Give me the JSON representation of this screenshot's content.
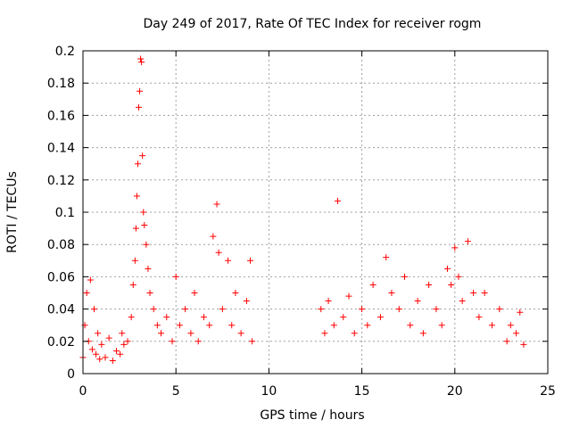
{
  "chart_data": {
    "type": "scatter",
    "title": "Day 249 of 2017, Rate Of TEC Index for receiver rogm",
    "xlabel": "GPS time / hours",
    "ylabel": "ROTI / TECUs",
    "xlim": [
      0,
      25
    ],
    "ylim": [
      0,
      0.2
    ],
    "xticks": [
      0,
      5,
      10,
      15,
      20,
      25
    ],
    "yticks": [
      0,
      0.02,
      0.04,
      0.06,
      0.08,
      0.1,
      0.12,
      0.14,
      0.16,
      0.18,
      0.2
    ],
    "xtick_labels": [
      "0",
      "5",
      "10",
      "15",
      "20",
      "25"
    ],
    "ytick_labels": [
      "0",
      "0.02",
      "0.04",
      "0.06",
      "0.08",
      "0.1",
      "0.12",
      "0.14",
      "0.16",
      "0.18",
      "0.2"
    ],
    "grid": true,
    "marker": "+",
    "color": "#ff0000",
    "series": [
      {
        "name": "ROTI",
        "points": [
          [
            0.0,
            0.01
          ],
          [
            0.1,
            0.03
          ],
          [
            0.2,
            0.05
          ],
          [
            0.3,
            0.02
          ],
          [
            0.4,
            0.058
          ],
          [
            0.5,
            0.015
          ],
          [
            0.6,
            0.04
          ],
          [
            0.7,
            0.012
          ],
          [
            0.8,
            0.025
          ],
          [
            0.9,
            0.009
          ],
          [
            1.0,
            0.018
          ],
          [
            1.2,
            0.01
          ],
          [
            1.4,
            0.022
          ],
          [
            1.6,
            0.008
          ],
          [
            1.8,
            0.014
          ],
          [
            2.0,
            0.012
          ],
          [
            2.1,
            0.025
          ],
          [
            2.2,
            0.018
          ],
          [
            2.4,
            0.02
          ],
          [
            2.6,
            0.035
          ],
          [
            2.7,
            0.055
          ],
          [
            2.8,
            0.07
          ],
          [
            2.85,
            0.09
          ],
          [
            2.9,
            0.11
          ],
          [
            2.95,
            0.13
          ],
          [
            3.0,
            0.165
          ],
          [
            3.05,
            0.175
          ],
          [
            3.1,
            0.195
          ],
          [
            3.15,
            0.193
          ],
          [
            3.2,
            0.135
          ],
          [
            3.25,
            0.1
          ],
          [
            3.3,
            0.092
          ],
          [
            3.4,
            0.08
          ],
          [
            3.5,
            0.065
          ],
          [
            3.6,
            0.05
          ],
          [
            3.8,
            0.04
          ],
          [
            4.0,
            0.03
          ],
          [
            4.2,
            0.025
          ],
          [
            4.5,
            0.035
          ],
          [
            4.8,
            0.02
          ],
          [
            5.0,
            0.06
          ],
          [
            5.2,
            0.03
          ],
          [
            5.5,
            0.04
          ],
          [
            5.8,
            0.025
          ],
          [
            6.0,
            0.05
          ],
          [
            6.2,
            0.02
          ],
          [
            6.5,
            0.035
          ],
          [
            6.8,
            0.03
          ],
          [
            7.0,
            0.085
          ],
          [
            7.2,
            0.105
          ],
          [
            7.3,
            0.075
          ],
          [
            7.5,
            0.04
          ],
          [
            7.8,
            0.07
          ],
          [
            8.0,
            0.03
          ],
          [
            8.2,
            0.05
          ],
          [
            8.5,
            0.025
          ],
          [
            8.8,
            0.045
          ],
          [
            9.0,
            0.07
          ],
          [
            9.1,
            0.02
          ],
          [
            12.8,
            0.04
          ],
          [
            13.0,
            0.025
          ],
          [
            13.2,
            0.045
          ],
          [
            13.5,
            0.03
          ],
          [
            13.7,
            0.107
          ],
          [
            14.0,
            0.035
          ],
          [
            14.3,
            0.048
          ],
          [
            14.6,
            0.025
          ],
          [
            15.0,
            0.04
          ],
          [
            15.3,
            0.03
          ],
          [
            15.6,
            0.055
          ],
          [
            16.0,
            0.035
          ],
          [
            16.3,
            0.072
          ],
          [
            16.6,
            0.05
          ],
          [
            17.0,
            0.04
          ],
          [
            17.3,
            0.06
          ],
          [
            17.6,
            0.03
          ],
          [
            18.0,
            0.045
          ],
          [
            18.3,
            0.025
          ],
          [
            18.6,
            0.055
          ],
          [
            19.0,
            0.04
          ],
          [
            19.3,
            0.03
          ],
          [
            19.6,
            0.065
          ],
          [
            19.8,
            0.055
          ],
          [
            20.0,
            0.078
          ],
          [
            20.2,
            0.06
          ],
          [
            20.4,
            0.045
          ],
          [
            20.7,
            0.082
          ],
          [
            21.0,
            0.05
          ],
          [
            21.3,
            0.035
          ],
          [
            21.6,
            0.05
          ],
          [
            22.0,
            0.03
          ],
          [
            22.4,
            0.04
          ],
          [
            22.8,
            0.02
          ],
          [
            23.0,
            0.03
          ],
          [
            23.3,
            0.025
          ],
          [
            23.5,
            0.038
          ],
          [
            23.7,
            0.018
          ]
        ]
      }
    ]
  }
}
